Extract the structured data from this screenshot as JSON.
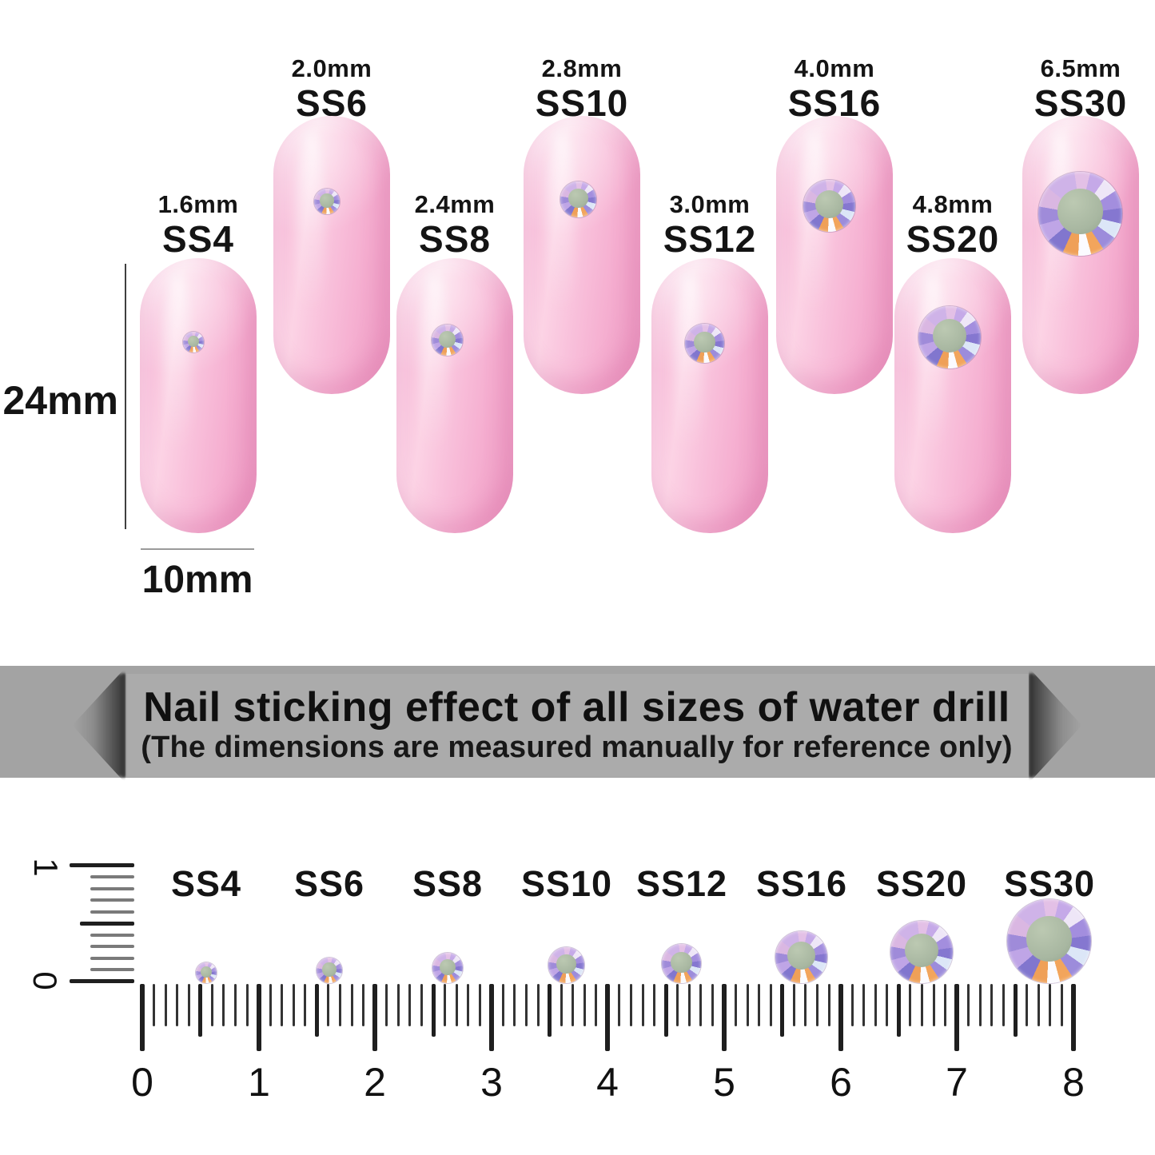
{
  "nail_section": {
    "height_dimension": "24mm",
    "width_dimension": "10mm",
    "nails": [
      {
        "id": "ss4",
        "size_label": "1.6mm",
        "ss_label": "SS4",
        "size_mm": 1.6
      },
      {
        "id": "ss6",
        "size_label": "2.0mm",
        "ss_label": "SS6",
        "size_mm": 2.0
      },
      {
        "id": "ss8",
        "size_label": "2.4mm",
        "ss_label": "SS8",
        "size_mm": 2.4
      },
      {
        "id": "ss10",
        "size_label": "2.8mm",
        "ss_label": "SS10",
        "size_mm": 2.8
      },
      {
        "id": "ss12",
        "size_label": "3.0mm",
        "ss_label": "SS12",
        "size_mm": 3.0
      },
      {
        "id": "ss16",
        "size_label": "4.0mm",
        "ss_label": "SS16",
        "size_mm": 4.0
      },
      {
        "id": "ss20",
        "size_label": "4.8mm",
        "ss_label": "SS20",
        "size_mm": 4.8
      },
      {
        "id": "ss30",
        "size_label": "6.5mm",
        "ss_label": "SS30",
        "size_mm": 6.5
      }
    ]
  },
  "banner": {
    "title": "Nail sticking effect of all sizes of water drill",
    "subtitle": "(The dimensions are measured manually for reference only)"
  },
  "ruler_section": {
    "vertical_ruler": {
      "top_label": "1",
      "bottom_label": "0"
    },
    "tick_labels": [
      "0",
      "1",
      "2",
      "3",
      "4",
      "5",
      "6",
      "7",
      "8"
    ],
    "gems": [
      {
        "ss_label": "SS4",
        "size_mm": 1.6,
        "position_cm": 0.55
      },
      {
        "ss_label": "SS6",
        "size_mm": 2.0,
        "position_cm": 1.6
      },
      {
        "ss_label": "SS8",
        "size_mm": 2.4,
        "position_cm": 2.6
      },
      {
        "ss_label": "SS10",
        "size_mm": 2.8,
        "position_cm": 3.65
      },
      {
        "ss_label": "SS12",
        "size_mm": 3.0,
        "position_cm": 4.65
      },
      {
        "ss_label": "SS16",
        "size_mm": 4.0,
        "position_cm": 5.65
      },
      {
        "ss_label": "SS20",
        "size_mm": 4.8,
        "position_cm": 6.7
      },
      {
        "ss_label": "SS30",
        "size_mm": 6.5,
        "position_cm": 7.8
      }
    ]
  },
  "colors": {
    "nail_pink": "#f8bcd8",
    "nail_pink_highlight": "#fcd3e5",
    "nail_pink_shadow": "#ee9dc5",
    "banner_outer_gray": "#a3a3a3",
    "banner_ribbon_gray": "#ababab",
    "text_dark": "#141414",
    "gem_center_sage": "#a8b7a1",
    "gem_orange": "#f2a55c",
    "gem_violet": "#8577d0",
    "gem_lavender": "#c5a9e8",
    "tick_dark": "#1f1f1f",
    "tick_light": "#7a7a7a"
  }
}
